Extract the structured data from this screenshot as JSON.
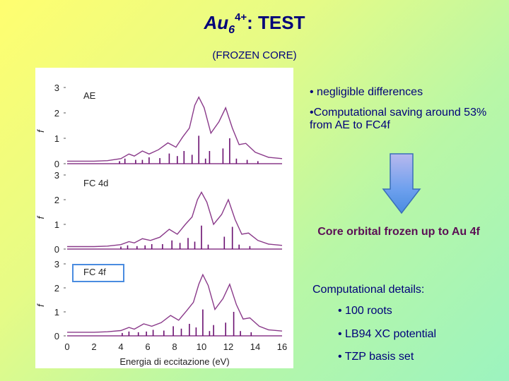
{
  "slide": {
    "title_base": "Au",
    "title_sub": "6",
    "title_sup": "4+",
    "title_rest": ": TEST",
    "subtitle": "(FROZEN CORE)",
    "bullets": [
      "• negligible differences",
      "•Computational saving around 53% from AE to FC4f"
    ],
    "core_text": "Core orbital frozen up to Au 4f",
    "details_heading": "Computational details:",
    "details": [
      "• 100 roots",
      "• LB94 XC potential",
      "• TZP basis set"
    ],
    "colors": {
      "title": "#00007a",
      "core_text": "#5b0f55",
      "curve": "#8a3a8a",
      "sticks": "#6a0f70",
      "frame": "#4a8ce0",
      "arrow_top": "#b8b8ee",
      "arrow_mid": "#6da0ee"
    }
  },
  "chart_data": {
    "type": "line",
    "xlabel": "Energia di eccitazione (eV)",
    "ylabel": "f",
    "xlim": [
      0,
      16
    ],
    "ylim": [
      0,
      3
    ],
    "xticks": [
      "0",
      "2",
      "4",
      "6",
      "8",
      "10",
      "12",
      "14",
      "16"
    ],
    "yticks": [
      "0",
      "1",
      "2",
      "3"
    ],
    "panels": [
      {
        "label": "AE",
        "boxed": false,
        "curve": [
          [
            0,
            0.1
          ],
          [
            2,
            0.1
          ],
          [
            3,
            0.12
          ],
          [
            4,
            0.2
          ],
          [
            4.6,
            0.38
          ],
          [
            5,
            0.3
          ],
          [
            5.6,
            0.5
          ],
          [
            6.1,
            0.38
          ],
          [
            6.8,
            0.55
          ],
          [
            7.5,
            0.82
          ],
          [
            8.1,
            0.65
          ],
          [
            8.6,
            1.05
          ],
          [
            9.1,
            1.4
          ],
          [
            9.5,
            2.3
          ],
          [
            9.8,
            2.62
          ],
          [
            10.2,
            2.2
          ],
          [
            10.7,
            1.2
          ],
          [
            11.3,
            1.65
          ],
          [
            11.8,
            2.2
          ],
          [
            12.3,
            1.4
          ],
          [
            12.8,
            0.75
          ],
          [
            13.3,
            0.8
          ],
          [
            14,
            0.45
          ],
          [
            15,
            0.25
          ],
          [
            16,
            0.2
          ]
        ],
        "sticks": [
          [
            3.9,
            0.1
          ],
          [
            4.3,
            0.2
          ],
          [
            5.1,
            0.15
          ],
          [
            5.6,
            0.15
          ],
          [
            6.1,
            0.25
          ],
          [
            6.9,
            0.22
          ],
          [
            7.6,
            0.4
          ],
          [
            8.2,
            0.3
          ],
          [
            8.7,
            0.5
          ],
          [
            9.3,
            0.35
          ],
          [
            9.8,
            1.1
          ],
          [
            10.3,
            0.2
          ],
          [
            10.6,
            0.5
          ],
          [
            11.6,
            0.6
          ],
          [
            12.1,
            1.0
          ],
          [
            12.6,
            0.2
          ],
          [
            13.4,
            0.15
          ],
          [
            14.2,
            0.1
          ]
        ]
      },
      {
        "label": "FC 4d",
        "boxed": false,
        "curve": [
          [
            0,
            0.1
          ],
          [
            2,
            0.1
          ],
          [
            3,
            0.12
          ],
          [
            4,
            0.18
          ],
          [
            4.6,
            0.3
          ],
          [
            5,
            0.25
          ],
          [
            5.6,
            0.42
          ],
          [
            6.2,
            0.35
          ],
          [
            6.9,
            0.48
          ],
          [
            7.6,
            0.8
          ],
          [
            8.2,
            0.6
          ],
          [
            8.8,
            1.0
          ],
          [
            9.3,
            1.3
          ],
          [
            9.7,
            2.0
          ],
          [
            10,
            2.3
          ],
          [
            10.4,
            1.9
          ],
          [
            10.9,
            1.0
          ],
          [
            11.5,
            1.4
          ],
          [
            12,
            2.0
          ],
          [
            12.5,
            1.2
          ],
          [
            13,
            0.6
          ],
          [
            13.5,
            0.65
          ],
          [
            14.2,
            0.35
          ],
          [
            15,
            0.2
          ],
          [
            16,
            0.15
          ]
        ],
        "sticks": [
          [
            4.0,
            0.1
          ],
          [
            4.5,
            0.15
          ],
          [
            5.2,
            0.12
          ],
          [
            5.8,
            0.15
          ],
          [
            6.3,
            0.2
          ],
          [
            7.1,
            0.2
          ],
          [
            7.8,
            0.35
          ],
          [
            8.4,
            0.25
          ],
          [
            9.0,
            0.45
          ],
          [
            9.5,
            0.3
          ],
          [
            10.0,
            0.95
          ],
          [
            10.5,
            0.18
          ],
          [
            11.7,
            0.5
          ],
          [
            12.3,
            0.9
          ],
          [
            12.8,
            0.18
          ],
          [
            13.6,
            0.12
          ]
        ]
      },
      {
        "label": "FC 4f",
        "boxed": true,
        "curve": [
          [
            0,
            0.15
          ],
          [
            2,
            0.15
          ],
          [
            3,
            0.17
          ],
          [
            4,
            0.22
          ],
          [
            4.6,
            0.35
          ],
          [
            5,
            0.28
          ],
          [
            5.7,
            0.5
          ],
          [
            6.3,
            0.4
          ],
          [
            7,
            0.55
          ],
          [
            7.7,
            0.85
          ],
          [
            8.3,
            0.65
          ],
          [
            8.9,
            1.05
          ],
          [
            9.4,
            1.4
          ],
          [
            9.8,
            2.15
          ],
          [
            10.1,
            2.55
          ],
          [
            10.5,
            2.1
          ],
          [
            11,
            1.1
          ],
          [
            11.6,
            1.55
          ],
          [
            12.1,
            2.15
          ],
          [
            12.6,
            1.3
          ],
          [
            13.1,
            0.7
          ],
          [
            13.6,
            0.75
          ],
          [
            14.3,
            0.4
          ],
          [
            15,
            0.25
          ],
          [
            16,
            0.2
          ]
        ],
        "sticks": [
          [
            4.1,
            0.12
          ],
          [
            4.6,
            0.18
          ],
          [
            5.3,
            0.15
          ],
          [
            5.9,
            0.18
          ],
          [
            6.4,
            0.25
          ],
          [
            7.2,
            0.22
          ],
          [
            7.9,
            0.4
          ],
          [
            8.5,
            0.3
          ],
          [
            9.1,
            0.5
          ],
          [
            9.6,
            0.35
          ],
          [
            10.1,
            1.1
          ],
          [
            10.6,
            0.2
          ],
          [
            10.9,
            0.45
          ],
          [
            11.8,
            0.55
          ],
          [
            12.4,
            1.0
          ],
          [
            12.9,
            0.2
          ],
          [
            13.7,
            0.15
          ]
        ]
      }
    ]
  }
}
